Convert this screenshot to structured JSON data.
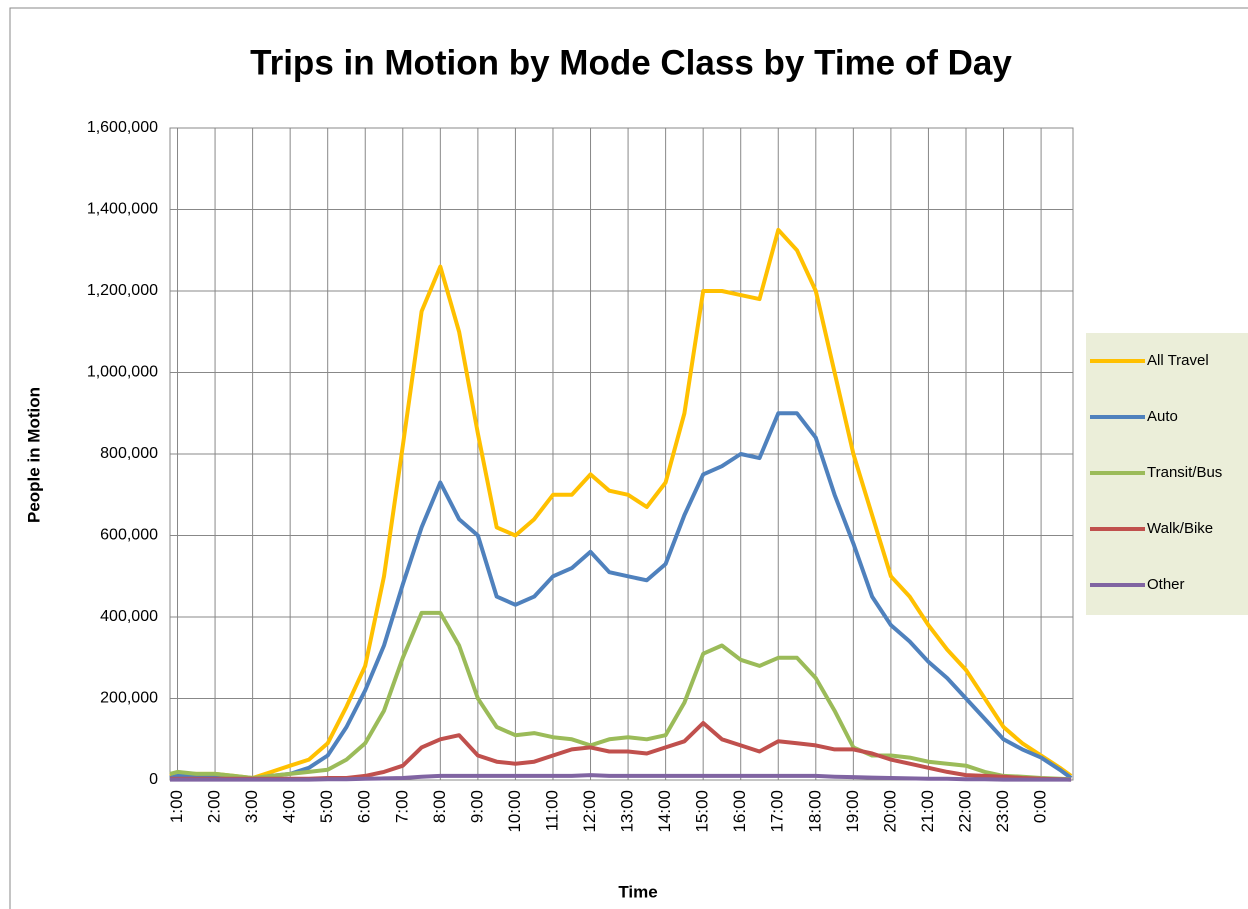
{
  "chart_data": {
    "type": "line",
    "title": "Trips in Motion by Mode Class by Time of Day",
    "x_label": "Time",
    "y_label": "People in Motion",
    "x": [
      0.8,
      1.0,
      1.5,
      2.0,
      2.5,
      3.0,
      3.5,
      4.0,
      4.5,
      5.0,
      5.5,
      6.0,
      6.5,
      7.0,
      7.5,
      8.0,
      8.5,
      9.0,
      9.5,
      10.0,
      10.5,
      11.0,
      11.5,
      12.0,
      12.5,
      13.0,
      13.5,
      14.0,
      14.5,
      15.0,
      15.5,
      16.0,
      16.5,
      17.0,
      17.5,
      18.0,
      18.5,
      19.0,
      19.5,
      20.0,
      20.5,
      21.0,
      21.5,
      22.0,
      22.5,
      23.0,
      23.5,
      24.0,
      24.5,
      24.8
    ],
    "xlim": [
      0.8,
      24.85
    ],
    "xticks": [
      {
        "value": 1,
        "label": "1:00"
      },
      {
        "value": 2,
        "label": "2:00"
      },
      {
        "value": 3,
        "label": "3:00"
      },
      {
        "value": 4,
        "label": "4:00"
      },
      {
        "value": 5,
        "label": "5:00"
      },
      {
        "value": 6,
        "label": "6:00"
      },
      {
        "value": 7,
        "label": "7:00"
      },
      {
        "value": 8,
        "label": "8:00"
      },
      {
        "value": 9,
        "label": "9:00"
      },
      {
        "value": 10,
        "label": "10:00"
      },
      {
        "value": 11,
        "label": "11:00"
      },
      {
        "value": 12,
        "label": "12:00"
      },
      {
        "value": 13,
        "label": "13:00"
      },
      {
        "value": 14,
        "label": "14:00"
      },
      {
        "value": 15,
        "label": "15:00"
      },
      {
        "value": 16,
        "label": "16:00"
      },
      {
        "value": 17,
        "label": "17:00"
      },
      {
        "value": 18,
        "label": "18:00"
      },
      {
        "value": 19,
        "label": "19:00"
      },
      {
        "value": 20,
        "label": "20:00"
      },
      {
        "value": 21,
        "label": "21:00"
      },
      {
        "value": 22,
        "label": "22:00"
      },
      {
        "value": 23,
        "label": "23:00"
      },
      {
        "value": 24,
        "label": "0:00"
      }
    ],
    "ylim": [
      0,
      1600000
    ],
    "yticks": [
      0,
      {
        "value": 200000,
        "label": "200,000"
      },
      {
        "value": 400000,
        "label": "400,000"
      },
      {
        "value": 600000,
        "label": "600,000"
      },
      {
        "value": 800000,
        "label": "800,000"
      },
      {
        "value": 1000000,
        "label": "1,000,000"
      },
      {
        "value": 1200000,
        "label": "1,200,000"
      },
      {
        "value": 1400000,
        "label": "1,400,000"
      },
      {
        "value": 1600000,
        "label": "1,600,000"
      }
    ],
    "grid": true,
    "legend": "right",
    "series": [
      {
        "name": "All Travel",
        "color": "#ffc000",
        "values": [
          10000,
          15000,
          15000,
          15000,
          10000,
          5000,
          20000,
          35000,
          50000,
          90000,
          180000,
          280000,
          500000,
          820000,
          1150000,
          1260000,
          1100000,
          850000,
          620000,
          600000,
          640000,
          700000,
          700000,
          750000,
          710000,
          700000,
          670000,
          730000,
          900000,
          1200000,
          1200000,
          1190000,
          1180000,
          1350000,
          1300000,
          1200000,
          1000000,
          800000,
          650000,
          500000,
          450000,
          380000,
          320000,
          270000,
          200000,
          130000,
          90000,
          60000,
          30000,
          10000
        ]
      },
      {
        "name": "Auto",
        "color": "#4f81bd",
        "values": [
          5000,
          10000,
          10000,
          10000,
          5000,
          3000,
          10000,
          15000,
          30000,
          60000,
          130000,
          220000,
          330000,
          480000,
          620000,
          730000,
          640000,
          600000,
          450000,
          430000,
          450000,
          500000,
          520000,
          560000,
          510000,
          500000,
          490000,
          530000,
          650000,
          750000,
          770000,
          800000,
          790000,
          900000,
          900000,
          840000,
          700000,
          580000,
          450000,
          380000,
          340000,
          290000,
          250000,
          200000,
          150000,
          100000,
          75000,
          55000,
          25000,
          5000
        ]
      },
      {
        "name": "Transit/Bus",
        "color": "#9bbb59",
        "values": [
          15000,
          20000,
          15000,
          15000,
          10000,
          5000,
          10000,
          15000,
          20000,
          25000,
          50000,
          90000,
          170000,
          300000,
          410000,
          410000,
          330000,
          200000,
          130000,
          110000,
          115000,
          105000,
          100000,
          85000,
          100000,
          105000,
          100000,
          110000,
          190000,
          310000,
          330000,
          295000,
          280000,
          300000,
          300000,
          250000,
          170000,
          80000,
          60000,
          60000,
          55000,
          45000,
          40000,
          35000,
          20000,
          10000,
          8000,
          5000,
          3000,
          2000
        ]
      },
      {
        "name": "Walk/Bike",
        "color": "#c0504d",
        "values": [
          3000,
          3000,
          3000,
          3000,
          3000,
          3000,
          3000,
          3000,
          3000,
          5000,
          5000,
          10000,
          20000,
          35000,
          80000,
          100000,
          110000,
          60000,
          45000,
          40000,
          45000,
          60000,
          75000,
          80000,
          70000,
          70000,
          65000,
          80000,
          95000,
          140000,
          100000,
          85000,
          70000,
          95000,
          90000,
          85000,
          75000,
          75000,
          65000,
          50000,
          40000,
          30000,
          20000,
          12000,
          10000,
          8000,
          5000,
          3000,
          2000,
          1000
        ]
      },
      {
        "name": "Other",
        "color": "#8064a2",
        "values": [
          1000,
          1000,
          1000,
          1000,
          1000,
          1000,
          1000,
          1000,
          1000,
          2000,
          2000,
          3000,
          4000,
          5000,
          8000,
          10000,
          10000,
          10000,
          10000,
          10000,
          10000,
          10000,
          10000,
          12000,
          10000,
          10000,
          10000,
          10000,
          10000,
          10000,
          10000,
          10000,
          10000,
          10000,
          10000,
          10000,
          8000,
          7000,
          6000,
          5000,
          4000,
          3000,
          3000,
          2000,
          2000,
          1000,
          1000,
          1000,
          1000,
          1000
        ]
      }
    ]
  }
}
